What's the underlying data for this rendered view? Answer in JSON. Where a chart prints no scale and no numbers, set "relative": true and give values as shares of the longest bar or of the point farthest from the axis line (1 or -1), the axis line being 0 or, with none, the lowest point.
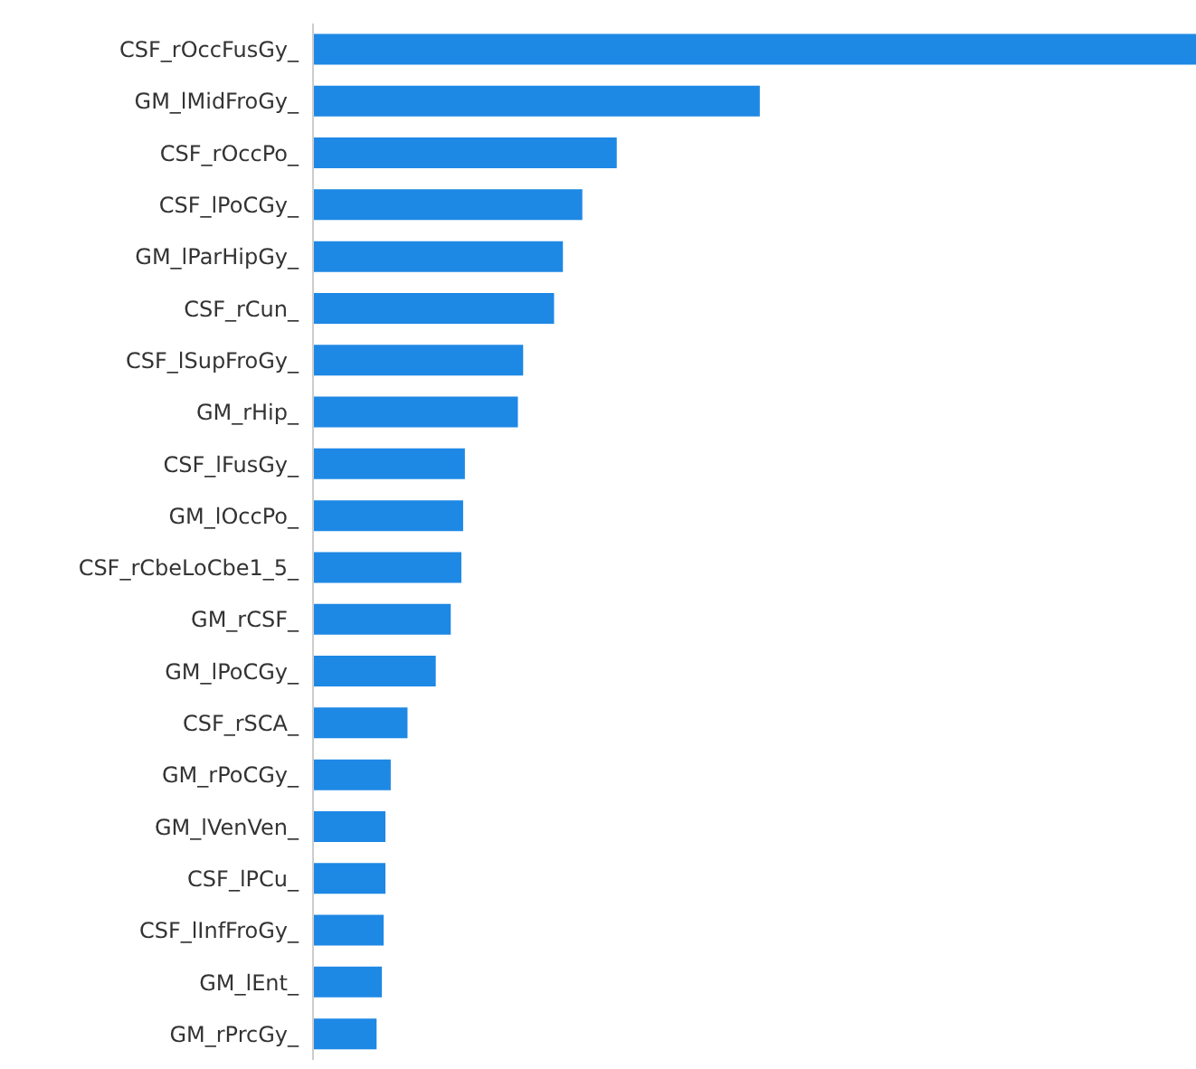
{
  "chart_data": {
    "type": "bar",
    "orientation": "horizontal",
    "relative": true,
    "color": "#1e88e5",
    "categories": [
      "CSF_rOccFusGy_",
      "GM_lMidFroGy_",
      "CSF_rOccPo_",
      "CSF_lPoCGy_",
      "GM_lParHipGy_",
      "CSF_rCun_",
      "CSF_lSupFroGy_",
      "GM_rHip_",
      "CSF_lFusGy_",
      "GM_lOccPo_",
      "CSF_rCbeLoCbe1_5_",
      "GM_rCSF_",
      "GM_lPoCGy_",
      "CSF_rSCA_",
      "GM_rPoCGy_",
      "GM_lVenVen_",
      "CSF_lPCu_",
      "CSF_lInfFroGy_",
      "GM_lEnt_",
      "GM_rPrcGy_"
    ],
    "values": [
      1,
      0.506,
      0.344,
      0.305,
      0.283,
      0.273,
      0.238,
      0.232,
      0.172,
      0.17,
      0.168,
      0.156,
      0.139,
      0.107,
      0.088,
      0.082,
      0.082,
      0.08,
      0.078,
      0.072
    ]
  }
}
